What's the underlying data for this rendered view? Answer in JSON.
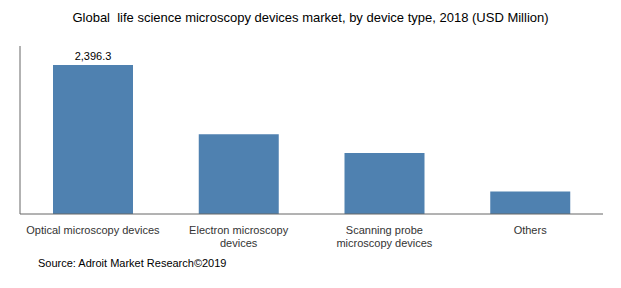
{
  "chart_data": {
    "type": "bar",
    "title": "Global  life science microscopy devices market, by device type, 2018 (USD Million)",
    "categories": [
      "Optical microscopy devices",
      "Electron microscopy\ndevices",
      "Scanning probe\nmicroscopy devices",
      "Others"
    ],
    "values": [
      2396.3,
      1280,
      980,
      360
    ],
    "color": "#4f81b0",
    "ylim": [
      0,
      2700
    ],
    "annotation": "2,396.3",
    "source": "Source: Adroit Market Research©2019",
    "grid": false,
    "tick_labels": "x"
  }
}
